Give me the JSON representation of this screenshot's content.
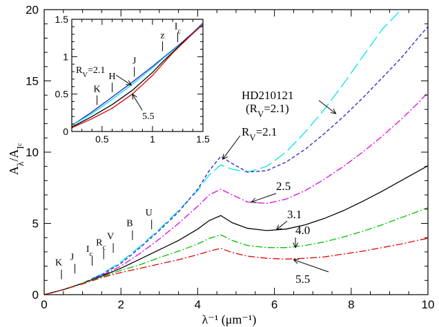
{
  "chart_data": {
    "type": "line",
    "xlabel": "λ⁻¹ (μm⁻¹)",
    "ylabel": "A_λ/A_Ic",
    "xlim": [
      0,
      10
    ],
    "ylim": [
      0,
      20
    ],
    "x_ticks": [
      "0",
      "2",
      "4",
      "6",
      "8",
      "10"
    ],
    "y_ticks": [
      "0",
      "5",
      "10",
      "15",
      "20"
    ],
    "grid": false,
    "series": [
      {
        "name": "HD210121 (R_V=2.1)",
        "color": "#00e5e5",
        "dash": "long-dash",
        "x": [
          0.0,
          0.5,
          1.0,
          1.5,
          2.0,
          2.5,
          3.0,
          3.5,
          4.0,
          4.3,
          4.6,
          4.9,
          5.3,
          5.8,
          6.3,
          6.8,
          7.3,
          7.8,
          8.3,
          8.8,
          9.3
        ],
        "y": [
          0.0,
          0.35,
          0.8,
          1.45,
          2.3,
          3.4,
          4.6,
          5.9,
          7.3,
          8.4,
          9.1,
          8.8,
          8.6,
          9.0,
          10.0,
          11.4,
          13.0,
          14.8,
          16.7,
          18.6,
          20.0
        ]
      },
      {
        "name": "R_V=2.1",
        "color": "#1f1fd0",
        "dash": "short-dash",
        "x": [
          0.0,
          0.5,
          1.0,
          1.5,
          2.0,
          2.5,
          3.0,
          3.5,
          4.0,
          4.3,
          4.6,
          4.9,
          5.3,
          5.8,
          6.3,
          6.8,
          7.3,
          7.8,
          8.3,
          8.8,
          9.3,
          9.8,
          10.0
        ],
        "y": [
          0.0,
          0.35,
          0.8,
          1.4,
          2.2,
          3.3,
          4.5,
          5.8,
          7.4,
          8.7,
          9.7,
          9.2,
          8.6,
          8.7,
          9.3,
          10.2,
          11.3,
          12.5,
          13.8,
          15.2,
          16.6,
          18.2,
          18.8
        ]
      },
      {
        "name": "R_V=2.5",
        "color": "#e000e0",
        "dash": "dash-dot",
        "x": [
          0.0,
          0.5,
          1.0,
          1.5,
          2.0,
          2.5,
          3.0,
          3.5,
          4.0,
          4.3,
          4.6,
          4.9,
          5.3,
          5.8,
          6.3,
          6.8,
          7.3,
          7.8,
          8.3,
          8.8,
          9.3,
          9.8,
          10.0
        ],
        "y": [
          0.0,
          0.35,
          0.8,
          1.35,
          2.0,
          2.9,
          3.9,
          5.0,
          6.2,
          7.0,
          7.4,
          7.0,
          6.5,
          6.4,
          6.7,
          7.3,
          8.1,
          9.0,
          10.0,
          11.1,
          12.3,
          13.6,
          14.2
        ]
      },
      {
        "name": "R_V=3.1",
        "color": "#000000",
        "dash": "solid",
        "x": [
          0.0,
          0.5,
          1.0,
          1.5,
          2.0,
          2.5,
          3.0,
          3.5,
          4.0,
          4.3,
          4.6,
          4.9,
          5.3,
          5.8,
          6.3,
          6.8,
          7.3,
          7.8,
          8.3,
          8.8,
          9.3,
          9.8,
          10.0
        ],
        "y": [
          0.0,
          0.35,
          0.8,
          1.3,
          1.85,
          2.5,
          3.15,
          3.8,
          4.6,
          5.2,
          5.55,
          5.05,
          4.65,
          4.5,
          4.6,
          4.9,
          5.35,
          5.9,
          6.55,
          7.25,
          8.0,
          8.75,
          9.05
        ]
      },
      {
        "name": "R_V=4.0",
        "color": "#00c000",
        "dash": "dash-dot",
        "x": [
          0.0,
          0.5,
          1.0,
          1.5,
          2.0,
          2.5,
          3.0,
          3.5,
          4.0,
          4.3,
          4.6,
          4.9,
          5.3,
          5.8,
          6.3,
          6.8,
          7.3,
          7.8,
          8.3,
          8.8,
          9.3,
          9.8,
          10.0
        ],
        "y": [
          0.0,
          0.35,
          0.8,
          1.25,
          1.7,
          2.1,
          2.6,
          3.05,
          3.55,
          3.95,
          4.2,
          3.8,
          3.45,
          3.3,
          3.3,
          3.45,
          3.7,
          4.05,
          4.45,
          4.9,
          5.4,
          5.9,
          6.1
        ]
      },
      {
        "name": "R_V=5.5",
        "color": "#e00000",
        "dash": "dash-dot",
        "x": [
          0.0,
          0.5,
          1.0,
          1.5,
          2.0,
          2.5,
          3.0,
          3.5,
          4.0,
          4.3,
          4.6,
          4.9,
          5.3,
          5.8,
          6.3,
          6.8,
          7.3,
          7.8,
          8.3,
          8.8,
          9.3,
          9.8,
          10.0
        ],
        "y": [
          0.0,
          0.35,
          0.75,
          1.2,
          1.55,
          1.85,
          2.15,
          2.45,
          2.8,
          3.05,
          3.25,
          2.95,
          2.7,
          2.55,
          2.5,
          2.55,
          2.65,
          2.85,
          3.05,
          3.3,
          3.55,
          3.85,
          3.95
        ]
      }
    ],
    "band_markers": [
      {
        "label": "K",
        "x": 0.45,
        "y": 0.6
      },
      {
        "label": "J",
        "x": 0.8,
        "y": 1.0
      },
      {
        "label": "I",
        "sub": "c",
        "x": 1.25,
        "y": 1.55
      },
      {
        "label": "R",
        "sub": "c",
        "x": 1.55,
        "y": 2.0
      },
      {
        "label": "V",
        "x": 1.8,
        "y": 2.45
      },
      {
        "label": "B",
        "x": 2.3,
        "y": 3.35
      },
      {
        "label": "U",
        "x": 2.8,
        "y": 4.1
      }
    ],
    "annotations": [
      {
        "line1": "HD210121",
        "line2": "(R",
        "sub": "V",
        "tail": "=2.1)",
        "series": "HD210121 (R_V=2.1)"
      },
      {
        "text": "R",
        "sub": "V",
        "tail": "=2.1",
        "series": "R_V=2.1"
      },
      {
        "text": "2.5",
        "series": "R_V=2.5"
      },
      {
        "text": "3.1",
        "series": "R_V=3.1"
      },
      {
        "text": "4.0",
        "series": "R_V=4.0"
      },
      {
        "text": "5.5",
        "series": "R_V=5.5"
      }
    ],
    "inset": {
      "xlim": [
        0.2,
        1.5
      ],
      "ylim": [
        0,
        1.5
      ],
      "x_ticks": [
        "0.5",
        "1",
        "1.5"
      ],
      "y_ticks": [
        "0",
        "0.5",
        "1",
        "1.5"
      ],
      "series": [
        {
          "name": "R_V=2.1",
          "color": "#1f1fd0",
          "dash": "solid",
          "x": [
            0.2,
            0.4,
            0.6,
            0.8,
            1.0,
            1.1,
            1.2,
            1.3,
            1.4,
            1.5
          ],
          "y": [
            0.08,
            0.26,
            0.46,
            0.66,
            0.87,
            0.98,
            1.09,
            1.2,
            1.32,
            1.45
          ]
        },
        {
          "name": "HD210121",
          "color": "#00e5e5",
          "dash": "solid",
          "x": [
            0.2,
            0.4,
            0.6,
            0.8,
            1.0,
            1.1,
            1.2,
            1.3,
            1.4,
            1.5
          ],
          "y": [
            0.08,
            0.24,
            0.43,
            0.63,
            0.85,
            0.97,
            1.08,
            1.19,
            1.31,
            1.44
          ]
        },
        {
          "name": "R_V=3.1",
          "color": "#000000",
          "dash": "solid",
          "x": [
            0.2,
            0.4,
            0.6,
            0.8,
            1.0,
            1.1,
            1.2,
            1.3,
            1.4,
            1.5
          ],
          "y": [
            0.06,
            0.2,
            0.36,
            0.55,
            0.79,
            0.93,
            1.06,
            1.19,
            1.31,
            1.43
          ]
        },
        {
          "name": "R_V=5.5",
          "color": "#e00000",
          "dash": "solid",
          "x": [
            0.2,
            0.4,
            0.6,
            0.8,
            1.0,
            1.1,
            1.2,
            1.3,
            1.4,
            1.5
          ],
          "y": [
            0.05,
            0.17,
            0.31,
            0.5,
            0.75,
            0.9,
            1.05,
            1.18,
            1.31,
            1.43
          ]
        }
      ],
      "band_markers": [
        {
          "label": "K",
          "x": 0.45,
          "y": 0.28
        },
        {
          "label": "H",
          "x": 0.6,
          "y": 0.45
        },
        {
          "label": "J",
          "x": 0.82,
          "y": 0.66
        },
        {
          "label": "z",
          "x": 1.1,
          "y": 1.0
        },
        {
          "label": "I",
          "sub": "c",
          "x": 1.25,
          "y": 1.12
        }
      ],
      "annotations": [
        {
          "text": "R",
          "sub": "V",
          "tail": "=2.1"
        },
        {
          "text": "5.5"
        }
      ]
    }
  }
}
